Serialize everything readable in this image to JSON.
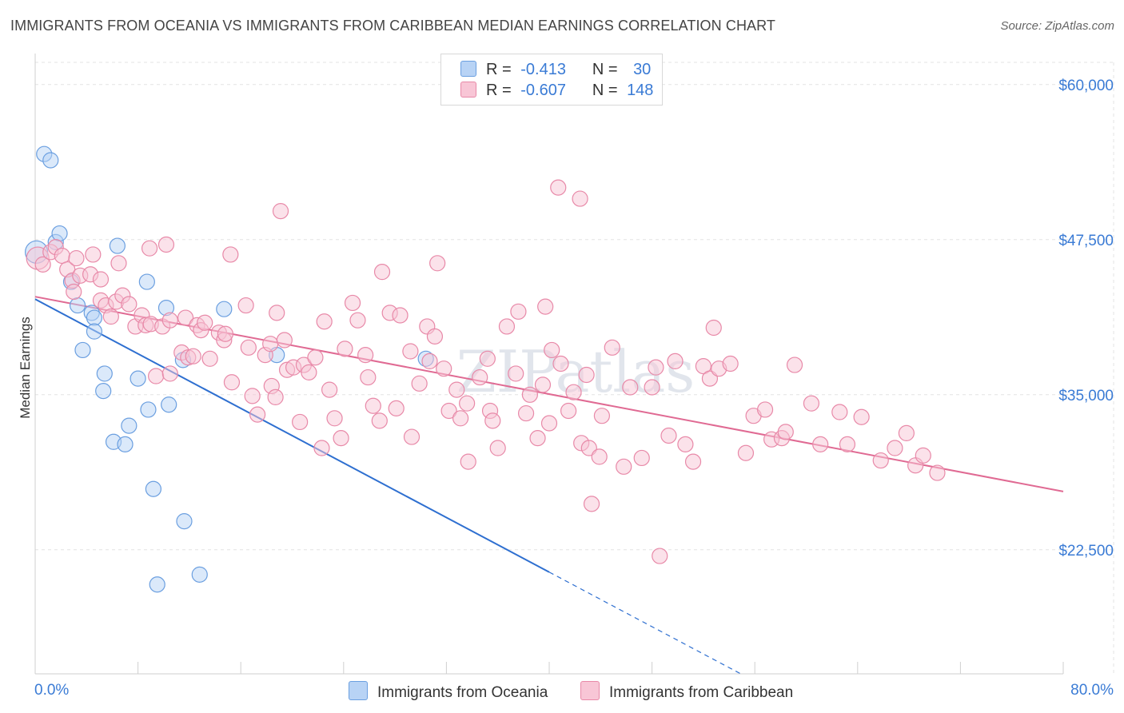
{
  "header": {
    "title": "IMMIGRANTS FROM OCEANIA VS IMMIGRANTS FROM CARIBBEAN MEDIAN EARNINGS CORRELATION CHART",
    "source": "Source: ZipAtlas.com"
  },
  "legend": {
    "rows": [
      {
        "r_label": "R =",
        "r_value": "-0.413",
        "n_label": "N =",
        "n_value": "30"
      },
      {
        "r_label": "R =",
        "r_value": "-0.607",
        "n_label": "N =",
        "n_value": "148"
      }
    ]
  },
  "bottom_legend": [
    "Immigrants from Oceania",
    "Immigrants from Caribbean"
  ],
  "watermark": "ZIPatlas",
  "colors": {
    "oceania_fill": "#b8d3f5",
    "oceania_stroke": "#6b9fe0",
    "oceania_line": "#2e6fd0",
    "caribbean_fill": "#f8c6d6",
    "caribbean_stroke": "#e889a8",
    "caribbean_line": "#e06a93",
    "tick_label": "#3a7bd5",
    "grid": "#e3e3e3"
  },
  "chart_data": {
    "type": "scatter",
    "title": "IMMIGRANTS FROM OCEANIA VS IMMIGRANTS FROM CARIBBEAN MEDIAN EARNINGS CORRELATION CHART",
    "xlabel": "",
    "ylabel": "Median Earnings",
    "xlim": [
      0,
      80
    ],
    "ylim": [
      12500,
      62500
    ],
    "x_tick_labels": [
      "0.0%",
      "80.0%"
    ],
    "y_ticks": [
      22500,
      35000,
      47500,
      60000
    ],
    "y_tick_labels": [
      "$22,500",
      "$35,000",
      "$47,500",
      "$60,000"
    ],
    "grid": true,
    "legend_position": "top-center",
    "series": [
      {
        "name": "Immigrants from Oceania",
        "r": -0.413,
        "n": 30,
        "points": [
          [
            0.1,
            46500
          ],
          [
            0.7,
            54400
          ],
          [
            1.2,
            53900
          ],
          [
            1.6,
            47300
          ],
          [
            1.9,
            48000
          ],
          [
            2.8,
            44100
          ],
          [
            3.3,
            42200
          ],
          [
            4.4,
            41600
          ],
          [
            4.6,
            41200
          ],
          [
            4.6,
            40100
          ],
          [
            3.7,
            38600
          ],
          [
            5.4,
            36700
          ],
          [
            5.3,
            35300
          ],
          [
            6.1,
            31200
          ],
          [
            7.0,
            31000
          ],
          [
            7.3,
            32500
          ],
          [
            8.0,
            36300
          ],
          [
            8.8,
            33800
          ],
          [
            8.7,
            44100
          ],
          [
            6.4,
            47000
          ],
          [
            10.2,
            42000
          ],
          [
            10.4,
            34200
          ],
          [
            9.2,
            27400
          ],
          [
            11.6,
            24800
          ],
          [
            9.5,
            19700
          ],
          [
            12.8,
            20500
          ],
          [
            14.7,
            41900
          ],
          [
            18.8,
            38200
          ],
          [
            30.4,
            37900
          ],
          [
            11.5,
            37800
          ]
        ],
        "trend": {
          "x": [
            0,
            40
          ],
          "y": [
            42700,
            20700
          ]
        },
        "trend_dashed": {
          "x": [
            40,
            60
          ],
          "y": [
            20700,
            9700
          ]
        }
      },
      {
        "name": "Immigrants from Caribbean",
        "r": -0.607,
        "n": 148,
        "points": [
          [
            0.2,
            46000
          ],
          [
            0.6,
            45500
          ],
          [
            1.2,
            46500
          ],
          [
            1.6,
            46900
          ],
          [
            2.1,
            46200
          ],
          [
            2.5,
            45100
          ],
          [
            2.9,
            44200
          ],
          [
            3.0,
            43300
          ],
          [
            3.2,
            46000
          ],
          [
            3.5,
            44600
          ],
          [
            4.3,
            44700
          ],
          [
            4.5,
            46300
          ],
          [
            5.1,
            44300
          ],
          [
            5.1,
            42600
          ],
          [
            5.5,
            42200
          ],
          [
            5.9,
            41300
          ],
          [
            6.3,
            42500
          ],
          [
            6.5,
            45600
          ],
          [
            6.8,
            43000
          ],
          [
            7.3,
            42300
          ],
          [
            7.8,
            40500
          ],
          [
            8.3,
            41400
          ],
          [
            8.6,
            40600
          ],
          [
            8.9,
            46800
          ],
          [
            9.0,
            40700
          ],
          [
            9.4,
            36500
          ],
          [
            9.9,
            40500
          ],
          [
            10.2,
            47100
          ],
          [
            10.5,
            41000
          ],
          [
            10.5,
            36700
          ],
          [
            11.4,
            38400
          ],
          [
            11.7,
            41200
          ],
          [
            11.9,
            38000
          ],
          [
            12.3,
            38100
          ],
          [
            12.6,
            40600
          ],
          [
            12.9,
            40200
          ],
          [
            13.2,
            40800
          ],
          [
            13.6,
            37900
          ],
          [
            14.3,
            40000
          ],
          [
            14.7,
            39400
          ],
          [
            14.8,
            39900
          ],
          [
            15.3,
            36000
          ],
          [
            16.4,
            42200
          ],
          [
            16.6,
            38800
          ],
          [
            16.9,
            34900
          ],
          [
            17.3,
            33400
          ],
          [
            17.9,
            38200
          ],
          [
            18.3,
            39100
          ],
          [
            18.4,
            35700
          ],
          [
            18.7,
            34800
          ],
          [
            18.8,
            41600
          ],
          [
            19.4,
            39400
          ],
          [
            19.6,
            37000
          ],
          [
            20.1,
            37200
          ],
          [
            20.9,
            37400
          ],
          [
            20.6,
            32800
          ],
          [
            21.3,
            36800
          ],
          [
            21.8,
            38000
          ],
          [
            22.5,
            40900
          ],
          [
            22.9,
            35400
          ],
          [
            22.3,
            30700
          ],
          [
            23.3,
            33100
          ],
          [
            23.8,
            31500
          ],
          [
            24.1,
            38700
          ],
          [
            24.7,
            42400
          ],
          [
            25.1,
            41000
          ],
          [
            25.9,
            36400
          ],
          [
            25.7,
            38200
          ],
          [
            26.3,
            34100
          ],
          [
            26.8,
            32900
          ],
          [
            27.6,
            41600
          ],
          [
            28.4,
            41400
          ],
          [
            28.1,
            33900
          ],
          [
            29.2,
            38500
          ],
          [
            29.3,
            31600
          ],
          [
            29.9,
            35900
          ],
          [
            30.5,
            40500
          ],
          [
            30.7,
            37700
          ],
          [
            31.1,
            39700
          ],
          [
            31.8,
            37100
          ],
          [
            32.2,
            33700
          ],
          [
            32.8,
            35400
          ],
          [
            33.1,
            33100
          ],
          [
            33.6,
            34300
          ],
          [
            33.7,
            29600
          ],
          [
            34.6,
            36400
          ],
          [
            35.2,
            37900
          ],
          [
            35.4,
            33700
          ],
          [
            35.6,
            32900
          ],
          [
            36.0,
            30700
          ],
          [
            36.7,
            40500
          ],
          [
            37.4,
            36700
          ],
          [
            37.6,
            41700
          ],
          [
            38.2,
            33500
          ],
          [
            38.5,
            35000
          ],
          [
            39.1,
            31500
          ],
          [
            39.5,
            35800
          ],
          [
            39.7,
            42100
          ],
          [
            40.0,
            32700
          ],
          [
            40.2,
            38600
          ],
          [
            40.9,
            37500
          ],
          [
            41.5,
            33700
          ],
          [
            41.9,
            35200
          ],
          [
            42.5,
            31100
          ],
          [
            42.9,
            36600
          ],
          [
            43.1,
            30700
          ],
          [
            43.3,
            26200
          ],
          [
            43.9,
            30000
          ],
          [
            44.1,
            33300
          ],
          [
            44.9,
            38800
          ],
          [
            45.8,
            29200
          ],
          [
            46.3,
            35600
          ],
          [
            47.2,
            29900
          ],
          [
            48.0,
            35600
          ],
          [
            48.3,
            37200
          ],
          [
            48.6,
            22000
          ],
          [
            49.3,
            31700
          ],
          [
            49.8,
            37700
          ],
          [
            50.6,
            31000
          ],
          [
            51.2,
            29600
          ],
          [
            52.0,
            37300
          ],
          [
            52.5,
            36300
          ],
          [
            52.8,
            40400
          ],
          [
            53.2,
            37100
          ],
          [
            54.1,
            37500
          ],
          [
            55.3,
            30300
          ],
          [
            55.9,
            33300
          ],
          [
            56.8,
            33800
          ],
          [
            57.3,
            31400
          ],
          [
            58.1,
            31500
          ],
          [
            58.4,
            32000
          ],
          [
            59.1,
            37400
          ],
          [
            60.4,
            34300
          ],
          [
            61.1,
            31000
          ],
          [
            62.6,
            33600
          ],
          [
            63.2,
            31000
          ],
          [
            64.3,
            33200
          ],
          [
            65.8,
            29700
          ],
          [
            66.9,
            30700
          ],
          [
            67.8,
            31900
          ],
          [
            68.5,
            29300
          ],
          [
            69.1,
            30100
          ],
          [
            70.2,
            28700
          ],
          [
            40.7,
            51700
          ],
          [
            42.4,
            50800
          ],
          [
            19.1,
            49800
          ],
          [
            27.0,
            44900
          ],
          [
            31.3,
            45600
          ],
          [
            15.2,
            46300
          ]
        ],
        "trend": {
          "x": [
            0,
            80
          ],
          "y": [
            42900,
            27200
          ]
        }
      }
    ]
  }
}
